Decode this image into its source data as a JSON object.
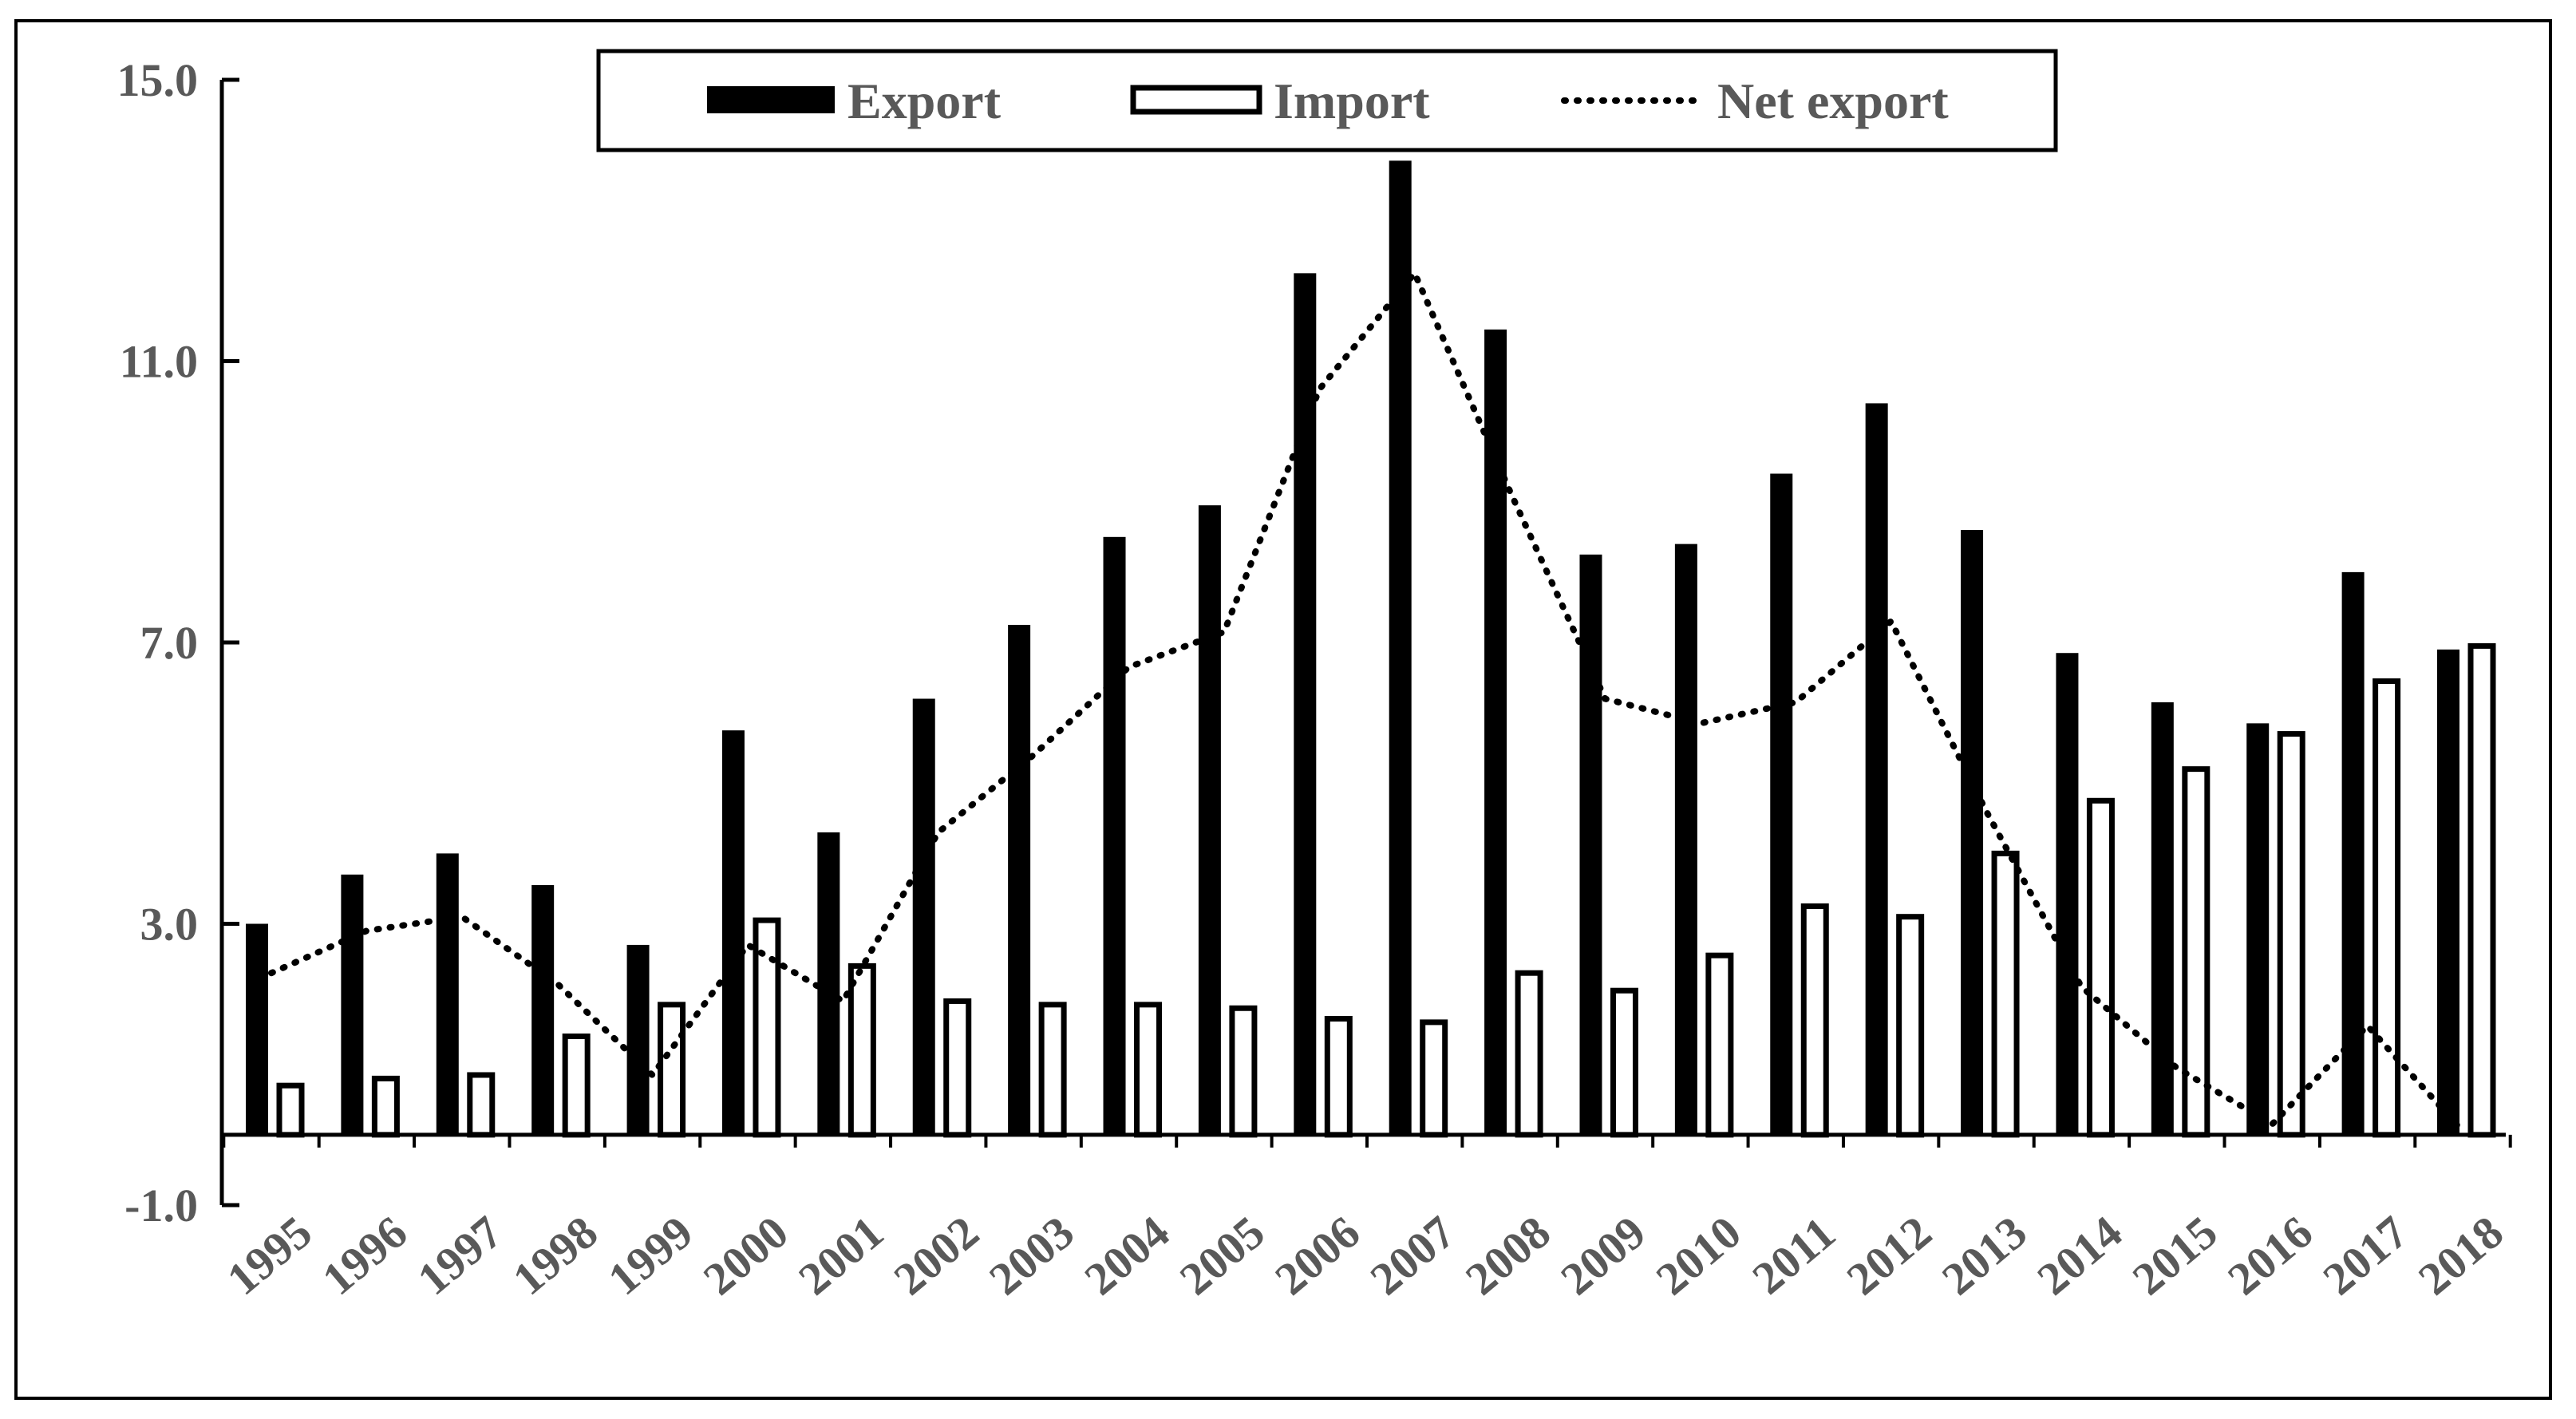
{
  "chart_data": {
    "type": "bar",
    "title": "",
    "xlabel": "",
    "ylabel": "",
    "ylim": [
      -1.0,
      15.0
    ],
    "yticks": [
      15.0,
      11.0,
      7.0,
      3.0,
      -1.0
    ],
    "ytick_labels": [
      "15.0",
      "11.0",
      "7.0",
      "3.0",
      "-1.0"
    ],
    "grid": false,
    "legend_position": "top",
    "categories": [
      "1995",
      "1996",
      "1997",
      "1998",
      "1999",
      "2000",
      "2001",
      "2002",
      "2003",
      "2004",
      "2005",
      "2006",
      "2007",
      "2008",
      "2009",
      "2010",
      "2011",
      "2012",
      "2013",
      "2014",
      "2015",
      "2016",
      "2017",
      "2018"
    ],
    "series": [
      {
        "name": "Export",
        "kind": "bar",
        "style": "filled",
        "color": "#000000",
        "values": [
          3.0,
          3.7,
          4.0,
          3.55,
          2.7,
          5.75,
          4.3,
          6.2,
          7.25,
          8.5,
          8.95,
          12.25,
          13.85,
          11.45,
          8.25,
          8.4,
          9.4,
          10.4,
          8.6,
          6.85,
          6.15,
          5.85,
          8.0,
          6.9
        ]
      },
      {
        "name": "Import",
        "kind": "bar",
        "style": "hollow",
        "color": "#000000",
        "values": [
          0.7,
          0.8,
          0.85,
          1.4,
          1.85,
          3.05,
          2.4,
          1.9,
          1.85,
          1.85,
          1.8,
          1.65,
          1.6,
          2.3,
          2.05,
          2.55,
          3.25,
          3.1,
          4.0,
          4.75,
          5.2,
          5.7,
          6.45,
          6.95
        ]
      },
      {
        "name": "Net export",
        "kind": "line",
        "style": "dotted",
        "color": "#000000",
        "values": [
          2.3,
          2.9,
          3.1,
          2.15,
          0.85,
          2.7,
          1.9,
          4.3,
          5.4,
          6.65,
          7.15,
          10.6,
          12.25,
          9.15,
          6.2,
          5.85,
          6.15,
          7.3,
          4.6,
          2.1,
          0.95,
          0.15,
          1.55,
          0.05
        ]
      }
    ]
  }
}
